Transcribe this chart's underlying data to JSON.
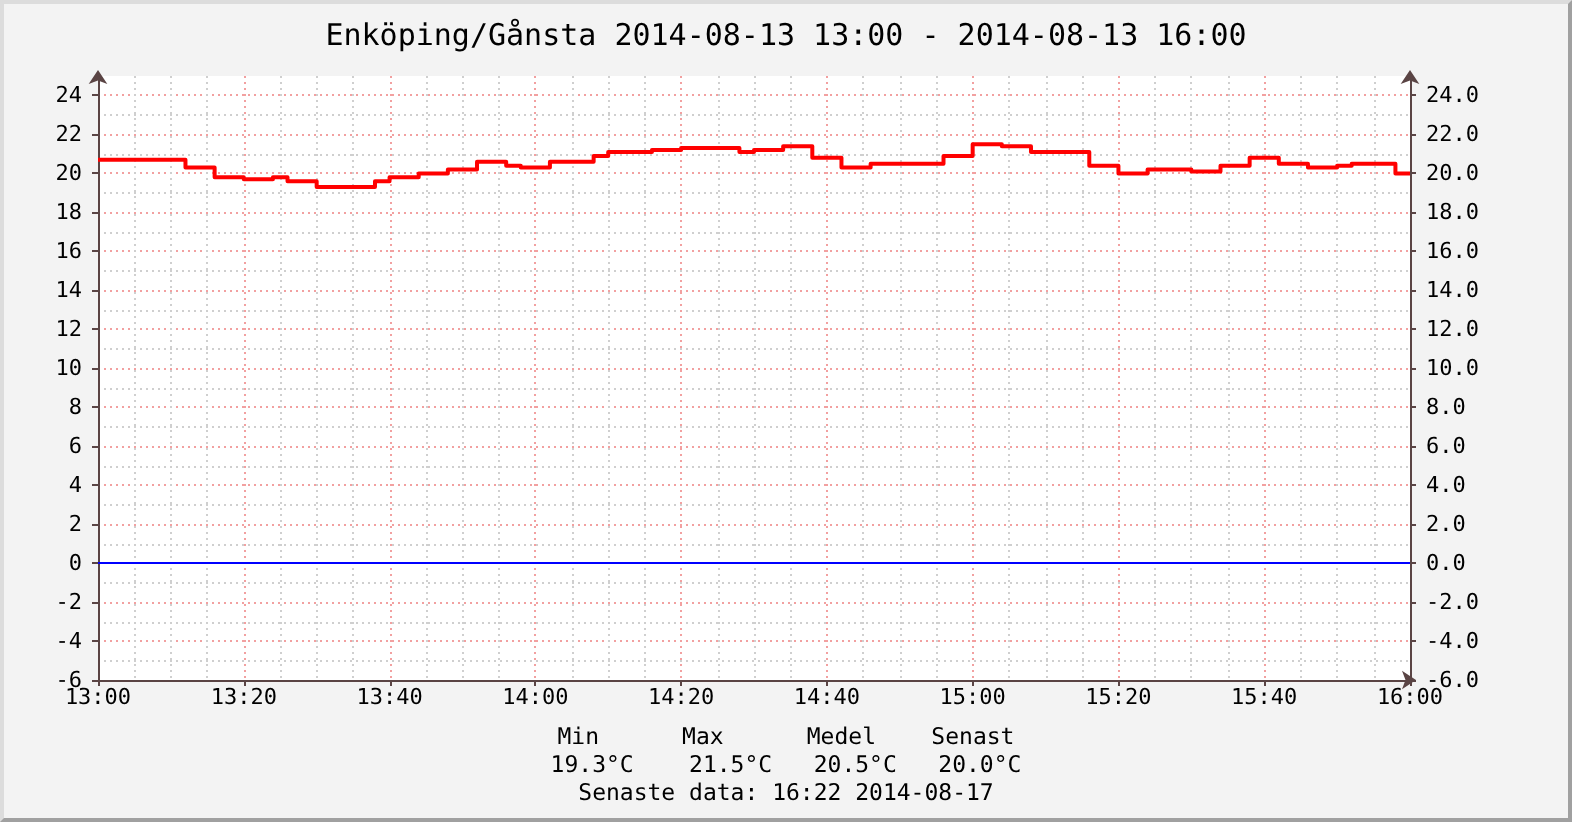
{
  "chart_data": {
    "type": "step",
    "title": "Enköping/Gånsta 2014-08-13 13:00 - 2014-08-13 16:00",
    "x": [
      "2014-08-13T13:00",
      "2014-08-13T13:12",
      "2014-08-13T13:16",
      "2014-08-13T13:20",
      "2014-08-13T13:24",
      "2014-08-13T13:26",
      "2014-08-13T13:30",
      "2014-08-13T13:38",
      "2014-08-13T13:40",
      "2014-08-13T13:44",
      "2014-08-13T13:48",
      "2014-08-13T13:52",
      "2014-08-13T13:56",
      "2014-08-13T13:58",
      "2014-08-13T14:02",
      "2014-08-13T14:08",
      "2014-08-13T14:10",
      "2014-08-13T14:16",
      "2014-08-13T14:20",
      "2014-08-13T14:28",
      "2014-08-13T14:30",
      "2014-08-13T14:34",
      "2014-08-13T14:38",
      "2014-08-13T14:42",
      "2014-08-13T14:46",
      "2014-08-13T14:56",
      "2014-08-13T15:00",
      "2014-08-13T15:04",
      "2014-08-13T15:08",
      "2014-08-13T15:16",
      "2014-08-13T15:20",
      "2014-08-13T15:24",
      "2014-08-13T15:30",
      "2014-08-13T15:34",
      "2014-08-13T15:38",
      "2014-08-13T15:42",
      "2014-08-13T15:46",
      "2014-08-13T15:50",
      "2014-08-13T15:52",
      "2014-08-13T15:58",
      "2014-08-13T16:00"
    ],
    "values": [
      20.7,
      20.3,
      19.8,
      19.7,
      19.8,
      19.6,
      19.3,
      19.6,
      19.8,
      20.0,
      20.2,
      20.6,
      20.4,
      20.3,
      20.6,
      20.9,
      21.1,
      21.2,
      21.3,
      21.1,
      21.2,
      21.4,
      20.8,
      20.3,
      20.5,
      20.9,
      21.5,
      21.4,
      21.1,
      20.4,
      20.0,
      20.2,
      20.1,
      20.4,
      20.8,
      20.5,
      20.3,
      20.4,
      20.5,
      20.0,
      20.0
    ],
    "color": "#ff0000",
    "marker": "none",
    "xlim": [
      "2014-08-13T13:00",
      "2014-08-13T16:00"
    ],
    "xticks": [
      {
        "value": "2014-08-13T13:00",
        "label": "13:00"
      },
      {
        "value": "2014-08-13T13:20",
        "label": "13:20"
      },
      {
        "value": "2014-08-13T13:40",
        "label": "13:40"
      },
      {
        "value": "2014-08-13T14:00",
        "label": "14:00"
      },
      {
        "value": "2014-08-13T14:20",
        "label": "14:20"
      },
      {
        "value": "2014-08-13T14:40",
        "label": "14:40"
      },
      {
        "value": "2014-08-13T15:00",
        "label": "15:00"
      },
      {
        "value": "2014-08-13T15:20",
        "label": "15:20"
      },
      {
        "value": "2014-08-13T15:40",
        "label": "15:40"
      },
      {
        "value": "2014-08-13T16:00",
        "label": "16:00"
      }
    ],
    "ylim": [
      -6,
      25
    ],
    "yticks": [
      -6,
      -4,
      -2,
      0,
      2,
      4,
      6,
      8,
      10,
      12,
      14,
      16,
      18,
      20,
      22,
      24
    ],
    "y2lim": [
      -6,
      25
    ],
    "y2ticks": [
      {
        "value": -6,
        "label": "-6.0"
      },
      {
        "value": -4,
        "label": "-4.0"
      },
      {
        "value": -2,
        "label": "-2.0"
      },
      {
        "value": 0,
        "label": "0.0"
      },
      {
        "value": 2,
        "label": "2.0"
      },
      {
        "value": 4,
        "label": "4.0"
      },
      {
        "value": 6,
        "label": "6.0"
      },
      {
        "value": 8,
        "label": "8.0"
      },
      {
        "value": 10,
        "label": "10.0"
      },
      {
        "value": 12,
        "label": "12.0"
      },
      {
        "value": 14,
        "label": "14.0"
      },
      {
        "value": 16,
        "label": "16.0"
      },
      {
        "value": 18,
        "label": "18.0"
      },
      {
        "value": 20,
        "label": "20.0"
      },
      {
        "value": 22,
        "label": "22.0"
      },
      {
        "value": 24,
        "label": "24.0"
      }
    ],
    "ref_lines": [
      {
        "axis": "y",
        "value": 0,
        "color": "#0000ff"
      }
    ],
    "grid": true,
    "annotations": [
      "Min      Max      Medel    Senast",
      "19.3°C    21.5°C   20.5°C   20.0°C",
      "Senaste data: 16:22 2014-08-17"
    ]
  }
}
